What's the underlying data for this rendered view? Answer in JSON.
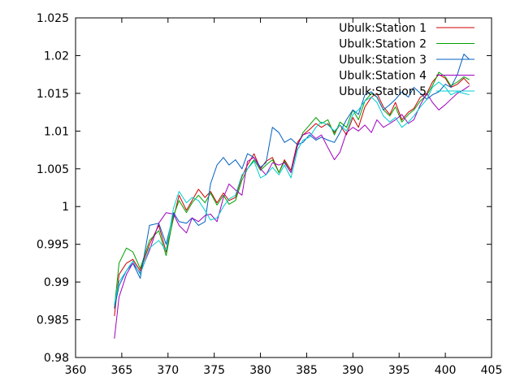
{
  "chart_data": {
    "type": "line",
    "title": "",
    "xlabel": "",
    "ylabel": "",
    "xlim": [
      360,
      405
    ],
    "ylim": [
      0.98,
      1.025
    ],
    "xticks": [
      "360",
      "365",
      "370",
      "375",
      "380",
      "385",
      "390",
      "395",
      "400",
      "405"
    ],
    "yticks": [
      "0.98",
      "0.985",
      "0.99",
      "0.995",
      "1",
      "1.005",
      "1.01",
      "1.015",
      "1.02",
      "1.025"
    ],
    "grid": false,
    "legend_position": "top-right",
    "series": [
      {
        "name": "Ubulk:Station 1",
        "color": "#cc0000",
        "x": [
          364.2,
          364.7,
          365.5,
          366.2,
          367.0,
          368.0,
          369.0,
          369.8,
          370.6,
          371.2,
          372.0,
          372.6,
          373.3,
          374.0,
          374.6,
          375.3,
          376.0,
          376.6,
          377.3,
          378.0,
          378.6,
          379.3,
          380.0,
          380.6,
          381.3,
          382.0,
          382.6,
          383.3,
          384.0,
          384.6,
          385.3,
          386.0,
          386.6,
          387.3,
          388.0,
          388.6,
          389.3,
          390.0,
          390.6,
          391.3,
          392.0,
          392.6,
          393.3,
          394.0,
          394.6,
          395.3,
          396.0,
          396.6,
          397.3,
          398.0,
          398.6,
          399.3,
          400.0,
          400.6,
          401.3,
          402.0,
          402.6
        ],
        "y": [
          0.9855,
          0.991,
          0.9925,
          0.993,
          0.9915,
          0.995,
          0.9975,
          0.994,
          0.9985,
          1.0015,
          0.9995,
          1.0008,
          1.0023,
          1.0012,
          1.002,
          1.0005,
          1.0018,
          1.0008,
          1.0012,
          1.004,
          1.0055,
          1.007,
          1.005,
          1.006,
          1.0065,
          1.0045,
          1.0062,
          1.0048,
          1.0085,
          1.0095,
          1.0102,
          1.011,
          1.0105,
          1.011,
          1.0098,
          1.0108,
          1.0095,
          1.0118,
          1.0105,
          1.0132,
          1.0145,
          1.015,
          1.0132,
          1.0122,
          1.0138,
          1.0115,
          1.0125,
          1.013,
          1.0145,
          1.015,
          1.0165,
          1.0175,
          1.017,
          1.0158,
          1.0162,
          1.017,
          1.0162
        ]
      },
      {
        "name": "Ubulk:Station 2",
        "color": "#00a000",
        "x": [
          364.2,
          364.7,
          365.5,
          366.2,
          367.0,
          368.0,
          369.0,
          369.8,
          370.6,
          371.2,
          372.0,
          372.6,
          373.3,
          374.0,
          374.6,
          375.3,
          376.0,
          376.6,
          377.3,
          378.0,
          378.6,
          379.3,
          380.0,
          380.6,
          381.3,
          382.0,
          382.6,
          383.3,
          384.0,
          384.6,
          385.3,
          386.0,
          386.6,
          387.3,
          388.0,
          388.6,
          389.3,
          390.0,
          390.6,
          391.3,
          392.0,
          392.6,
          393.3,
          394.0,
          394.6,
          395.3,
          396.0,
          396.6,
          397.3,
          398.0,
          398.6,
          399.3,
          400.0,
          400.6,
          401.3,
          402.0,
          402.6
        ],
        "y": [
          0.9865,
          0.9925,
          0.9945,
          0.994,
          0.9918,
          0.9955,
          0.9968,
          0.9935,
          0.9988,
          1.0008,
          0.9992,
          1.0005,
          1.0015,
          1.0005,
          1.0018,
          1.0002,
          1.0015,
          1.0003,
          1.0008,
          1.0035,
          1.005,
          1.0062,
          1.0048,
          1.0055,
          1.0062,
          1.0045,
          1.006,
          1.0045,
          1.008,
          1.0098,
          1.0108,
          1.0118,
          1.011,
          1.0115,
          1.0095,
          1.0112,
          1.0105,
          1.0128,
          1.0115,
          1.014,
          1.015,
          1.0145,
          1.0128,
          1.012,
          1.0132,
          1.0112,
          1.0122,
          1.0128,
          1.014,
          1.0148,
          1.016,
          1.0178,
          1.0172,
          1.016,
          1.0165,
          1.0172,
          1.0168
        ]
      },
      {
        "name": "Ubulk:Station 3",
        "color": "#0060c0",
        "x": [
          364.2,
          364.7,
          365.5,
          366.2,
          367.0,
          368.0,
          369.0,
          369.8,
          370.6,
          371.2,
          372.0,
          372.6,
          373.3,
          374.0,
          374.6,
          375.3,
          376.0,
          376.6,
          377.3,
          378.0,
          378.6,
          379.3,
          380.0,
          380.6,
          381.3,
          382.0,
          382.6,
          383.3,
          384.0,
          384.6,
          385.3,
          386.0,
          386.6,
          387.3,
          388.0,
          388.6,
          389.3,
          390.0,
          390.6,
          391.3,
          392.0,
          392.6,
          393.3,
          394.0,
          394.6,
          395.3,
          396.0,
          396.6,
          397.3,
          398.0,
          398.6,
          399.3,
          400.0,
          400.6,
          401.3,
          402.0,
          402.6
        ],
        "y": [
          0.9865,
          0.9895,
          0.9915,
          0.9925,
          0.9905,
          0.9975,
          0.9978,
          0.995,
          0.9992,
          0.998,
          0.9978,
          0.9985,
          0.9975,
          0.998,
          1.003,
          1.0055,
          1.0065,
          1.0055,
          1.0062,
          1.005,
          1.007,
          1.0065,
          1.0052,
          1.0058,
          1.0105,
          1.0098,
          1.0085,
          1.009,
          1.0082,
          1.0085,
          1.0095,
          1.0088,
          1.0092,
          1.0088,
          1.0085,
          1.0098,
          1.0115,
          1.0128,
          1.0122,
          1.0148,
          1.0152,
          1.0145,
          1.0128,
          1.0135,
          1.0142,
          1.0152,
          1.0145,
          1.0158,
          1.015,
          1.0142,
          1.0148,
          1.0152,
          1.0162,
          1.0158,
          1.0175,
          1.0202,
          1.0195
        ]
      },
      {
        "name": "Ubulk:Station 4",
        "color": "#a000c0",
        "x": [
          364.2,
          364.7,
          365.5,
          366.2,
          367.0,
          368.0,
          369.0,
          369.8,
          370.6,
          371.2,
          372.0,
          372.6,
          373.3,
          374.0,
          374.6,
          375.3,
          376.0,
          376.6,
          377.3,
          378.0,
          378.6,
          379.3,
          380.0,
          380.6,
          381.3,
          382.0,
          382.6,
          383.3,
          384.0,
          384.6,
          385.3,
          386.0,
          386.6,
          387.3,
          388.0,
          388.6,
          389.3,
          390.0,
          390.6,
          391.3,
          392.0,
          392.6,
          393.3,
          394.0,
          394.6,
          395.3,
          396.0,
          396.6,
          397.3,
          398.0,
          398.6,
          399.3,
          400.0,
          400.6,
          401.3,
          402.0,
          402.6
        ],
        "y": [
          0.9825,
          0.988,
          0.991,
          0.9925,
          0.9912,
          0.9942,
          0.9978,
          0.9992,
          0.999,
          0.9975,
          0.9965,
          0.9985,
          0.998,
          0.9988,
          0.999,
          0.998,
          1.0012,
          1.003,
          1.0022,
          1.0015,
          1.006,
          1.0065,
          1.005,
          1.0042,
          1.0058,
          1.0055,
          1.0058,
          1.0045,
          1.0082,
          1.0095,
          1.0098,
          1.009,
          1.0095,
          1.0078,
          1.0062,
          1.0072,
          1.0098,
          1.0105,
          1.01,
          1.0108,
          1.0098,
          1.0115,
          1.0105,
          1.011,
          1.0115,
          1.0122,
          1.011,
          1.0115,
          1.0135,
          1.015,
          1.0138,
          1.0128,
          1.0135,
          1.0142,
          1.015,
          1.0155,
          1.016
        ]
      },
      {
        "name": "Ubulk:Station 5",
        "color": "#00cccc",
        "x": [
          364.2,
          364.7,
          365.5,
          366.2,
          367.0,
          368.0,
          369.0,
          369.8,
          370.6,
          371.2,
          372.0,
          372.6,
          373.3,
          374.0,
          374.6,
          375.3,
          376.0,
          376.6,
          377.3,
          378.0,
          378.6,
          379.3,
          380.0,
          380.6,
          381.3,
          382.0,
          382.6,
          383.3,
          384.0,
          384.6,
          385.3,
          386.0,
          386.6,
          387.3,
          388.0,
          388.6,
          389.3,
          390.0,
          390.6,
          391.3,
          392.0,
          392.6,
          393.3,
          394.0,
          394.6,
          395.3,
          396.0,
          396.6,
          397.3,
          398.0,
          398.6,
          399.3,
          400.0,
          400.6,
          401.3,
          402.0,
          402.6
        ],
        "y": [
          0.987,
          0.99,
          0.9915,
          0.9928,
          0.991,
          0.9945,
          0.9955,
          0.9942,
          0.9998,
          1.002,
          1.0005,
          1.0012,
          1.0008,
          0.9995,
          0.9982,
          0.9985,
          1.0,
          1.001,
          1.0015,
          1.0042,
          1.005,
          1.006,
          1.0038,
          1.0042,
          1.0052,
          1.0042,
          1.0055,
          1.0038,
          1.0075,
          1.0088,
          1.0092,
          1.0105,
          1.0112,
          1.0108,
          1.01,
          1.0108,
          1.01,
          1.0122,
          1.0128,
          1.014,
          1.0145,
          1.0138,
          1.012,
          1.0112,
          1.0118,
          1.0105,
          1.0112,
          1.012,
          1.0132,
          1.0142,
          1.0158,
          1.0165,
          1.0158,
          1.0148,
          1.0152,
          1.015,
          1.0148
        ]
      }
    ]
  }
}
